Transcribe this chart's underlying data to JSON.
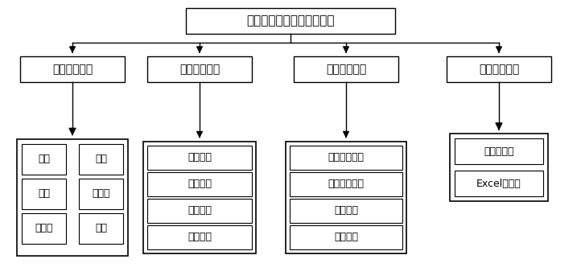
{
  "title": "天然气管网输差计算求解器",
  "level1_labels": [
    "管网绘图模块",
    "属性定义模块",
    "程序计算模块",
    "结果输出模块"
  ],
  "level2_col1": [
    "气源",
    "用户",
    "管线",
    "储气库",
    "换热器",
    "阀门"
  ],
  "level2_col2": [
    "元件参数",
    "边界条件",
    "气质组分",
    "基础数据"
  ],
  "level2_col3": [
    "物性参数计算",
    "水、热力计算",
    "管存计算",
    "输差计算"
  ],
  "level2_col4": [
    "图形化输出",
    "Excel表输出"
  ],
  "bg_color": "#ffffff",
  "edge_color": "#000000",
  "arrow_color": "#000000",
  "font_size_title": 11,
  "font_size_l1": 10,
  "font_size_l2": 9,
  "font_size_grid": 9
}
